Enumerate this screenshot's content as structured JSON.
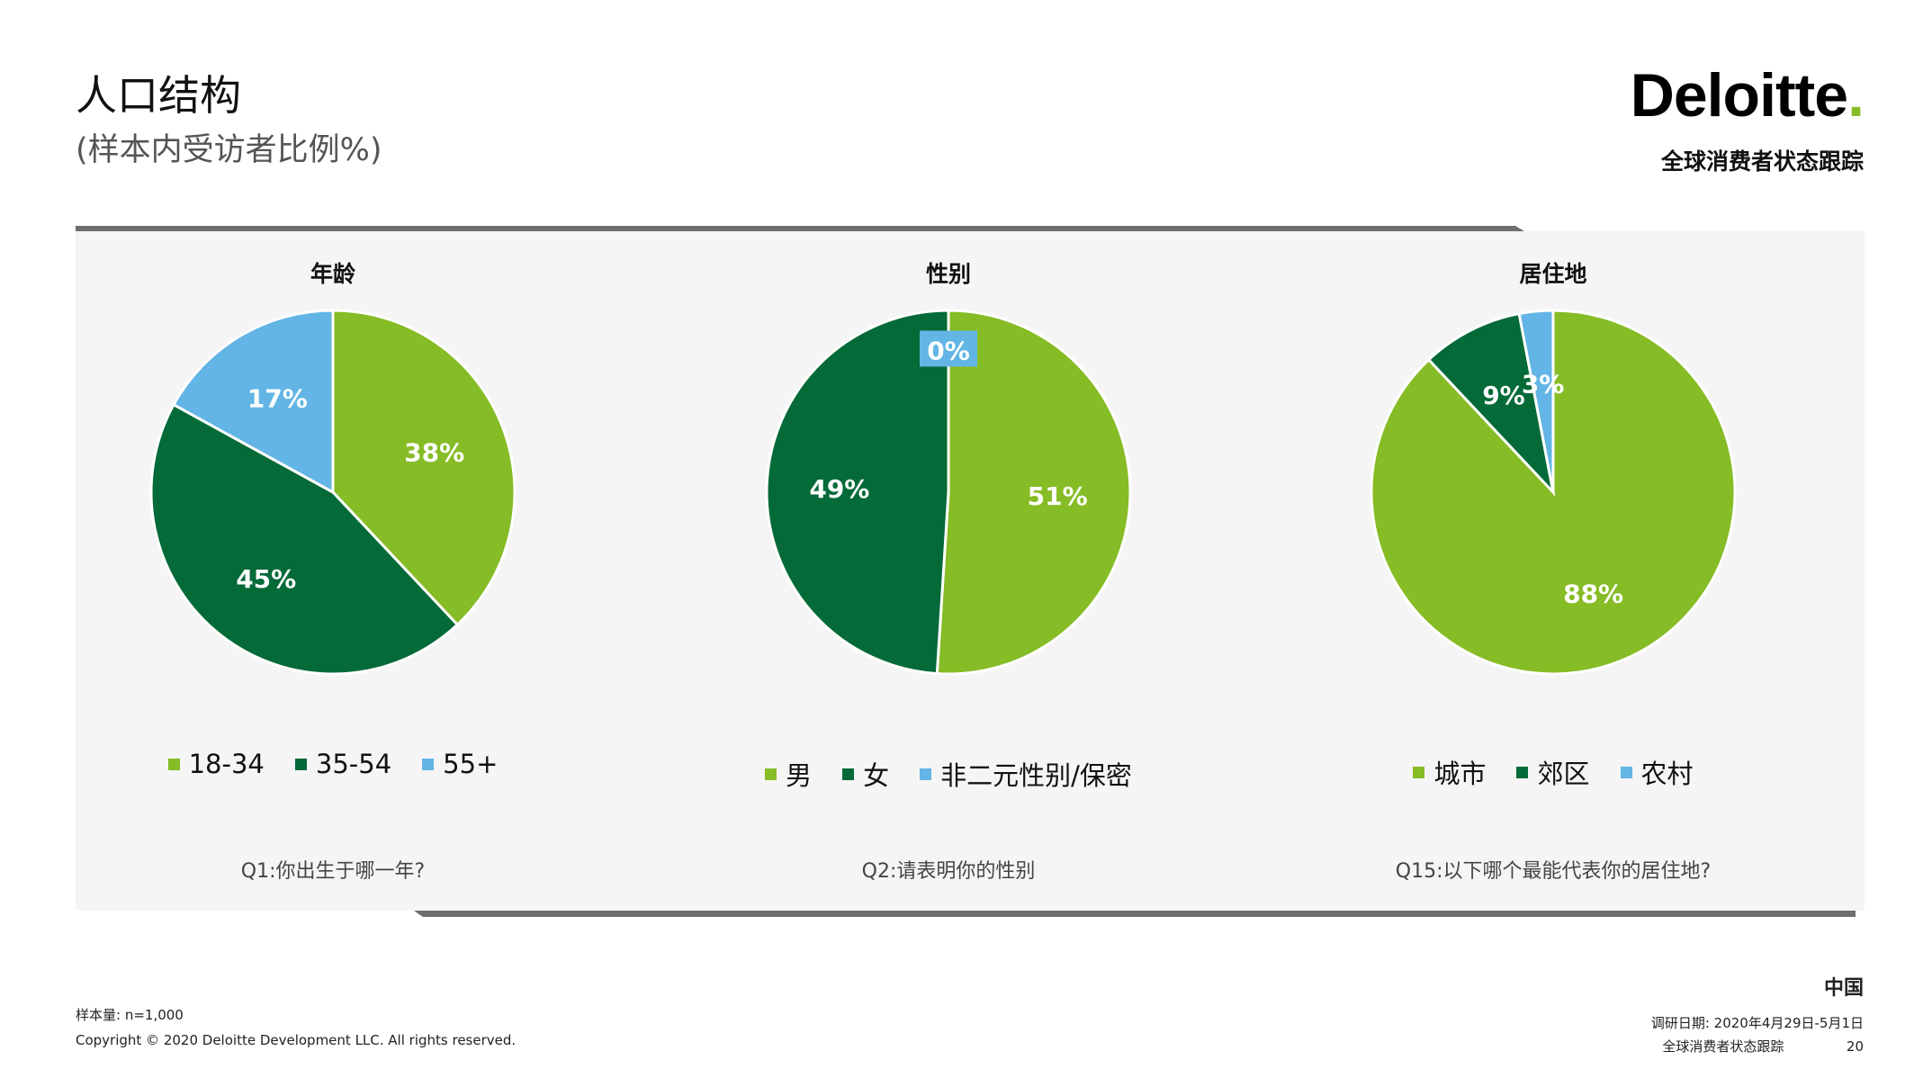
{
  "header": {
    "title": "人口结构",
    "subtitle": "(样本内受访者比例%)",
    "logo": "Deloitte",
    "logo_dot": ".",
    "tracker": "全球消费者状态跟踪"
  },
  "colors": {
    "light_green": "#86bc25",
    "dark_green": "#046a38",
    "light_blue": "#62b5e5"
  },
  "chart_data": [
    {
      "type": "pie",
      "title": "年龄",
      "categories": [
        "18-34",
        "35-54",
        "55+"
      ],
      "values": [
        38,
        45,
        17
      ],
      "labels": [
        "38%",
        "45%",
        "17%"
      ],
      "colors": [
        "#86bc25",
        "#046a38",
        "#62b5e5"
      ],
      "question": "Q1:你出生于哪一年?"
    },
    {
      "type": "pie",
      "title": "性别",
      "categories": [
        "男",
        "女",
        "非二元性别/保密"
      ],
      "values": [
        51,
        49,
        0
      ],
      "labels": [
        "51%",
        "49%",
        "0%"
      ],
      "colors": [
        "#86bc25",
        "#046a38",
        "#62b5e5"
      ],
      "question": "Q2:请表明你的性别"
    },
    {
      "type": "pie",
      "title": "居住地",
      "categories": [
        "城市",
        "郊区",
        "农村"
      ],
      "values": [
        88,
        9,
        3
      ],
      "labels": [
        "88%",
        "9%",
        "3%"
      ],
      "colors": [
        "#86bc25",
        "#046a38",
        "#62b5e5"
      ],
      "question": "Q15:以下哪个最能代表你的居住地?"
    }
  ],
  "footer": {
    "sample": "样本量: n=1,000",
    "copyright": "Copyright © 2020 Deloitte Development LLC. All rights reserved.",
    "country": "中国",
    "survey_date": "调研日期: 2020年4月29日-5月1日",
    "tracker": "全球消费者状态跟踪",
    "page": "20"
  }
}
